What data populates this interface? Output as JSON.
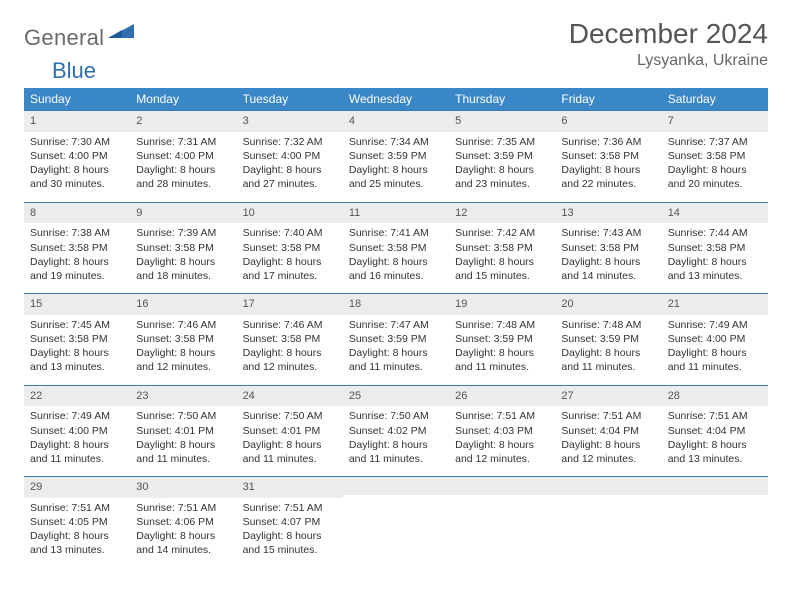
{
  "brand": {
    "word1": "General",
    "word2": "Blue"
  },
  "title": "December 2024",
  "location": "Lysyanka, Ukraine",
  "colors": {
    "header_bg": "#3a87c8",
    "header_text": "#ffffff",
    "daynum_bg": "#ececec",
    "rule": "#3a7db0",
    "body_text": "#333333",
    "title_text": "#555555",
    "logo_gray": "#6a6a6a",
    "logo_blue": "#2f6fb0"
  },
  "dow": [
    "Sunday",
    "Monday",
    "Tuesday",
    "Wednesday",
    "Thursday",
    "Friday",
    "Saturday"
  ],
  "days": [
    {
      "n": "1",
      "sr": "7:30 AM",
      "ss": "4:00 PM",
      "dl": "8 hours and 30 minutes."
    },
    {
      "n": "2",
      "sr": "7:31 AM",
      "ss": "4:00 PM",
      "dl": "8 hours and 28 minutes."
    },
    {
      "n": "3",
      "sr": "7:32 AM",
      "ss": "4:00 PM",
      "dl": "8 hours and 27 minutes."
    },
    {
      "n": "4",
      "sr": "7:34 AM",
      "ss": "3:59 PM",
      "dl": "8 hours and 25 minutes."
    },
    {
      "n": "5",
      "sr": "7:35 AM",
      "ss": "3:59 PM",
      "dl": "8 hours and 23 minutes."
    },
    {
      "n": "6",
      "sr": "7:36 AM",
      "ss": "3:58 PM",
      "dl": "8 hours and 22 minutes."
    },
    {
      "n": "7",
      "sr": "7:37 AM",
      "ss": "3:58 PM",
      "dl": "8 hours and 20 minutes."
    },
    {
      "n": "8",
      "sr": "7:38 AM",
      "ss": "3:58 PM",
      "dl": "8 hours and 19 minutes."
    },
    {
      "n": "9",
      "sr": "7:39 AM",
      "ss": "3:58 PM",
      "dl": "8 hours and 18 minutes."
    },
    {
      "n": "10",
      "sr": "7:40 AM",
      "ss": "3:58 PM",
      "dl": "8 hours and 17 minutes."
    },
    {
      "n": "11",
      "sr": "7:41 AM",
      "ss": "3:58 PM",
      "dl": "8 hours and 16 minutes."
    },
    {
      "n": "12",
      "sr": "7:42 AM",
      "ss": "3:58 PM",
      "dl": "8 hours and 15 minutes."
    },
    {
      "n": "13",
      "sr": "7:43 AM",
      "ss": "3:58 PM",
      "dl": "8 hours and 14 minutes."
    },
    {
      "n": "14",
      "sr": "7:44 AM",
      "ss": "3:58 PM",
      "dl": "8 hours and 13 minutes."
    },
    {
      "n": "15",
      "sr": "7:45 AM",
      "ss": "3:58 PM",
      "dl": "8 hours and 13 minutes."
    },
    {
      "n": "16",
      "sr": "7:46 AM",
      "ss": "3:58 PM",
      "dl": "8 hours and 12 minutes."
    },
    {
      "n": "17",
      "sr": "7:46 AM",
      "ss": "3:58 PM",
      "dl": "8 hours and 12 minutes."
    },
    {
      "n": "18",
      "sr": "7:47 AM",
      "ss": "3:59 PM",
      "dl": "8 hours and 11 minutes."
    },
    {
      "n": "19",
      "sr": "7:48 AM",
      "ss": "3:59 PM",
      "dl": "8 hours and 11 minutes."
    },
    {
      "n": "20",
      "sr": "7:48 AM",
      "ss": "3:59 PM",
      "dl": "8 hours and 11 minutes."
    },
    {
      "n": "21",
      "sr": "7:49 AM",
      "ss": "4:00 PM",
      "dl": "8 hours and 11 minutes."
    },
    {
      "n": "22",
      "sr": "7:49 AM",
      "ss": "4:00 PM",
      "dl": "8 hours and 11 minutes."
    },
    {
      "n": "23",
      "sr": "7:50 AM",
      "ss": "4:01 PM",
      "dl": "8 hours and 11 minutes."
    },
    {
      "n": "24",
      "sr": "7:50 AM",
      "ss": "4:01 PM",
      "dl": "8 hours and 11 minutes."
    },
    {
      "n": "25",
      "sr": "7:50 AM",
      "ss": "4:02 PM",
      "dl": "8 hours and 11 minutes."
    },
    {
      "n": "26",
      "sr": "7:51 AM",
      "ss": "4:03 PM",
      "dl": "8 hours and 12 minutes."
    },
    {
      "n": "27",
      "sr": "7:51 AM",
      "ss": "4:04 PM",
      "dl": "8 hours and 12 minutes."
    },
    {
      "n": "28",
      "sr": "7:51 AM",
      "ss": "4:04 PM",
      "dl": "8 hours and 13 minutes."
    },
    {
      "n": "29",
      "sr": "7:51 AM",
      "ss": "4:05 PM",
      "dl": "8 hours and 13 minutes."
    },
    {
      "n": "30",
      "sr": "7:51 AM",
      "ss": "4:06 PM",
      "dl": "8 hours and 14 minutes."
    },
    {
      "n": "31",
      "sr": "7:51 AM",
      "ss": "4:07 PM",
      "dl": "8 hours and 15 minutes."
    }
  ],
  "labels": {
    "sunrise": "Sunrise: ",
    "sunset": "Sunset: ",
    "daylight": "Daylight: "
  }
}
